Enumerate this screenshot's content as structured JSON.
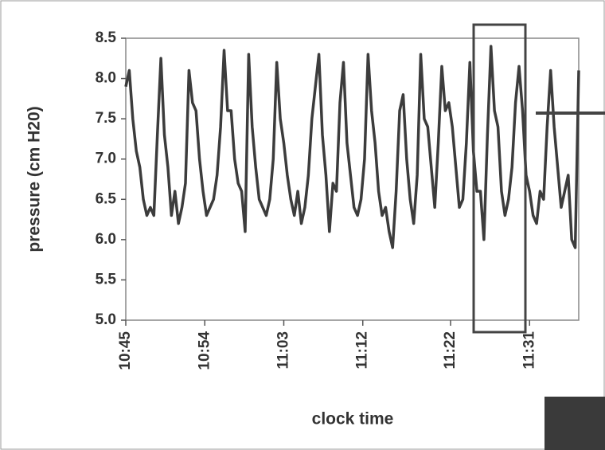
{
  "chart_data": {
    "type": "line",
    "xlabel": "clock time",
    "ylabel": "pressure (cm H20)",
    "color": "#3c3c3c",
    "xlim": [
      645,
      696.6
    ],
    "xticks": [
      {
        "value": 645,
        "label": "10:45"
      },
      {
        "value": 654,
        "label": "10:54"
      },
      {
        "value": 663,
        "label": "11:03"
      },
      {
        "value": 672,
        "label": "11:12"
      },
      {
        "value": 682,
        "label": "11:22"
      },
      {
        "value": 691,
        "label": "11:31"
      }
    ],
    "ylim": [
      5,
      8.5
    ],
    "yticks": [
      {
        "value": 5,
        "label": "5.0"
      },
      5.5,
      {
        "value": 6,
        "label": "6.0"
      },
      6.5,
      {
        "value": 7,
        "label": "7.0"
      },
      7.5,
      {
        "value": 8,
        "label": "8.0"
      },
      8.5
    ],
    "x": [
      645,
      645.4,
      645.8,
      646.2,
      646.6,
      647,
      647.4,
      647.8,
      648.2,
      648.6,
      649,
      649.4,
      649.8,
      650.2,
      650.6,
      651,
      651.4,
      651.8,
      652.2,
      652.6,
      653,
      653.4,
      653.8,
      654.2,
      654.6,
      655,
      655.4,
      655.8,
      656.2,
      656.6,
      657,
      657.4,
      657.8,
      658.2,
      658.6,
      659,
      659.4,
      659.8,
      660.2,
      660.6,
      661,
      661.4,
      661.8,
      662.2,
      662.6,
      663,
      663.4,
      663.8,
      664.2,
      664.6,
      665,
      665.4,
      665.8,
      666.2,
      666.6,
      667,
      667.4,
      667.8,
      668.2,
      668.6,
      669,
      669.4,
      669.8,
      670.2,
      670.6,
      671,
      671.4,
      671.8,
      672.2,
      672.6,
      673,
      673.4,
      673.8,
      674.2,
      674.6,
      675,
      675.4,
      675.8,
      676.2,
      676.6,
      677,
      677.4,
      677.8,
      678.2,
      678.6,
      679,
      679.4,
      679.8,
      680.2,
      680.6,
      681,
      681.4,
      681.8,
      682.2,
      682.6,
      683,
      683.4,
      683.8,
      684.2,
      684.6,
      685,
      685.4,
      685.8,
      686.2,
      686.6,
      687,
      687.4,
      687.8,
      688.2,
      688.6,
      689,
      689.4,
      689.8,
      690.2,
      690.6,
      691,
      691.4,
      691.8,
      692.2,
      692.6,
      693,
      693.4,
      693.8,
      694.2,
      694.6,
      695,
      695.4,
      695.8,
      696.2,
      696.6
    ],
    "values": [
      7.9,
      8.1,
      7.5,
      7.1,
      6.9,
      6.5,
      6.3,
      6.4,
      6.3,
      7.3,
      8.25,
      7.3,
      6.9,
      6.3,
      6.6,
      6.2,
      6.4,
      6.7,
      8.1,
      7.7,
      7.6,
      7.0,
      6.6,
      6.3,
      6.4,
      6.5,
      6.8,
      7.4,
      8.35,
      7.6,
      7.6,
      7.0,
      6.7,
      6.6,
      6.1,
      8.3,
      7.4,
      6.9,
      6.5,
      6.4,
      6.3,
      6.5,
      7.0,
      8.2,
      7.5,
      7.2,
      6.8,
      6.5,
      6.3,
      6.6,
      6.2,
      6.4,
      6.8,
      7.5,
      7.9,
      8.3,
      7.3,
      6.8,
      6.1,
      6.7,
      6.6,
      7.7,
      8.2,
      7.2,
      6.8,
      6.4,
      6.3,
      6.5,
      7.0,
      8.3,
      7.6,
      7.2,
      6.6,
      6.3,
      6.4,
      6.1,
      5.9,
      6.6,
      7.6,
      7.8,
      7.0,
      6.5,
      6.2,
      6.8,
      8.3,
      7.5,
      7.4,
      6.9,
      6.4,
      7.2,
      8.15,
      7.6,
      7.7,
      7.4,
      6.9,
      6.4,
      6.5,
      7.2,
      8.2,
      7.1,
      6.6,
      6.6,
      6.0,
      7.3,
      8.4,
      7.6,
      7.4,
      6.6,
      6.3,
      6.5,
      6.9,
      7.7,
      8.15,
      7.6,
      6.8,
      6.6,
      6.3,
      6.2,
      6.6,
      6.5,
      7.4,
      8.1,
      7.4,
      6.9,
      6.4,
      6.6,
      6.8,
      6.0,
      5.9,
      8.1
    ]
  }
}
